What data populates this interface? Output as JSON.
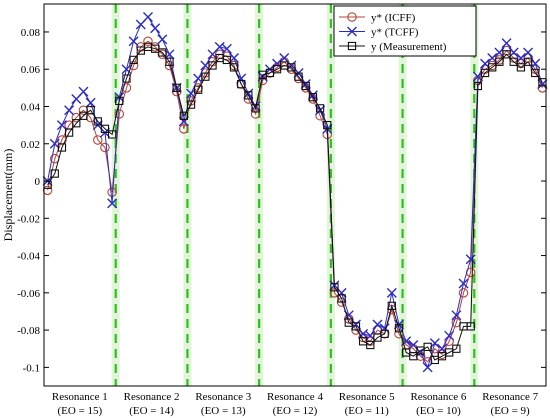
{
  "chart_data": {
    "type": "line",
    "title": "",
    "xlabel": "",
    "ylabel": "Displacement(mm)",
    "ylim": [
      -0.11,
      0.095
    ],
    "yticks": [
      0.08,
      0.06,
      0.04,
      0.02,
      0,
      -0.02,
      -0.04,
      -0.06,
      -0.08,
      -0.1
    ],
    "ytick_labels": [
      "0.08",
      "0.06",
      "0.04",
      "0.02",
      "0",
      "-0.02",
      "-0.04",
      "-0.06",
      "-0.08",
      "-0.1"
    ],
    "grid": false,
    "legend_position": "top-right",
    "segments": [
      {
        "label": "Resonance 1",
        "sublabel": "(EO = 15)"
      },
      {
        "label": "Resonance 2",
        "sublabel": "(EO = 14)"
      },
      {
        "label": "Resonance 3",
        "sublabel": "(EO = 13)"
      },
      {
        "label": "Resonance 4",
        "sublabel": "(EO = 12)"
      },
      {
        "label": "Resonance 5",
        "sublabel": "(EO = 11)"
      },
      {
        "label": "Resonance 6",
        "sublabel": "(EO = 10)"
      },
      {
        "label": "Resonance 7",
        "sublabel": "(EO = 9)"
      }
    ],
    "x": [
      0,
      1,
      2,
      3,
      4,
      5,
      6,
      7,
      8,
      9,
      10,
      11,
      12,
      13,
      14,
      15,
      16,
      17,
      18,
      19,
      20,
      21,
      22,
      23,
      24,
      25,
      26,
      27,
      28,
      29,
      30,
      31,
      32,
      33,
      34,
      35,
      36,
      37,
      38,
      39,
      40,
      41,
      42,
      43,
      44,
      45,
      46,
      47,
      48,
      49,
      50,
      51,
      52,
      53,
      54,
      55,
      56,
      57,
      58,
      59,
      60,
      61,
      62,
      63,
      64,
      65,
      66,
      67,
      68,
      69
    ],
    "boundaries": [
      9.5,
      19.5,
      29.5,
      39.5,
      49.5,
      59.5
    ],
    "xlim": [
      -0.5,
      69.5
    ],
    "series": [
      {
        "name": "y* (ICFF)",
        "color": "#b5443a",
        "marker": "circle",
        "values": [
          -0.005,
          0.012,
          0.022,
          0.03,
          0.034,
          0.038,
          0.034,
          0.022,
          0.018,
          -0.006,
          0.036,
          0.05,
          0.062,
          0.072,
          0.075,
          0.072,
          0.068,
          0.062,
          0.048,
          0.028,
          0.043,
          0.05,
          0.058,
          0.064,
          0.068,
          0.067,
          0.062,
          0.052,
          0.044,
          0.036,
          0.054,
          0.058,
          0.061,
          0.064,
          0.06,
          0.055,
          0.05,
          0.044,
          0.035,
          0.025,
          -0.06,
          -0.065,
          -0.074,
          -0.08,
          -0.084,
          -0.086,
          -0.08,
          -0.082,
          -0.069,
          -0.082,
          -0.088,
          -0.09,
          -0.094,
          -0.097,
          -0.09,
          -0.093,
          -0.086,
          -0.076,
          -0.06,
          -0.049,
          0.054,
          0.06,
          0.062,
          0.065,
          0.07,
          0.066,
          0.063,
          0.066,
          0.06,
          0.05
        ]
      },
      {
        "name": "y* (TCFF)",
        "color": "#2b2bc8",
        "marker": "x",
        "values": [
          0.0,
          0.02,
          0.03,
          0.038,
          0.044,
          0.048,
          0.042,
          0.03,
          0.026,
          -0.012,
          0.045,
          0.06,
          0.075,
          0.084,
          0.088,
          0.082,
          0.076,
          0.068,
          0.05,
          0.032,
          0.047,
          0.055,
          0.062,
          0.068,
          0.072,
          0.071,
          0.066,
          0.055,
          0.047,
          0.04,
          0.056,
          0.06,
          0.063,
          0.066,
          0.062,
          0.058,
          0.052,
          0.046,
          0.038,
          0.028,
          -0.056,
          -0.06,
          -0.072,
          -0.077,
          -0.082,
          -0.083,
          -0.077,
          -0.079,
          -0.06,
          -0.077,
          -0.086,
          -0.088,
          -0.092,
          -0.1,
          -0.087,
          -0.09,
          -0.083,
          -0.072,
          -0.055,
          -0.042,
          0.056,
          0.063,
          0.066,
          0.069,
          0.074,
          0.069,
          0.066,
          0.069,
          0.063,
          0.052
        ]
      },
      {
        "name": "y (Measurement)",
        "color": "#111111",
        "marker": "square",
        "values": [
          -0.002,
          0.004,
          0.018,
          0.026,
          0.031,
          0.035,
          0.038,
          0.032,
          0.028,
          0.025,
          0.043,
          0.055,
          0.065,
          0.07,
          0.072,
          0.071,
          0.069,
          0.064,
          0.05,
          0.035,
          0.041,
          0.049,
          0.056,
          0.062,
          0.066,
          0.065,
          0.061,
          0.052,
          0.046,
          0.039,
          0.057,
          0.058,
          0.06,
          0.062,
          0.061,
          0.056,
          0.051,
          0.045,
          0.039,
          0.03,
          -0.057,
          -0.063,
          -0.076,
          -0.078,
          -0.086,
          -0.088,
          -0.084,
          -0.082,
          -0.067,
          -0.079,
          -0.092,
          -0.094,
          -0.091,
          -0.089,
          -0.096,
          -0.094,
          -0.092,
          -0.09,
          -0.078,
          -0.078,
          0.051,
          0.058,
          0.061,
          0.064,
          0.068,
          0.064,
          0.061,
          0.064,
          0.058,
          0.053
        ]
      }
    ]
  }
}
